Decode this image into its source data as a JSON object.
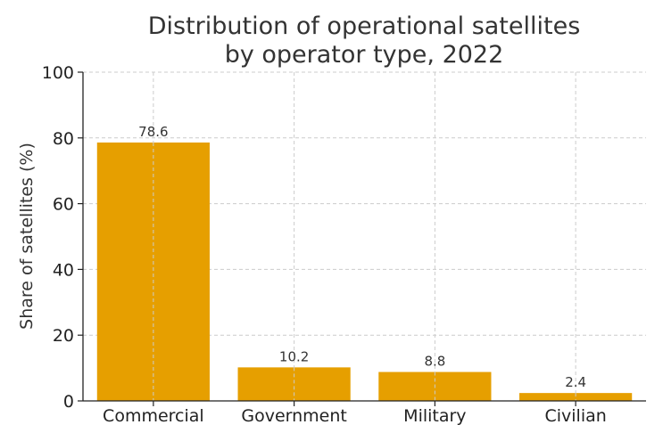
{
  "chart_data": {
    "type": "bar",
    "title_lines": [
      "Distribution of operational satellites",
      "by operator type, 2022"
    ],
    "xlabel": "",
    "ylabel": "Share of satellites (%)",
    "categories": [
      "Commercial",
      "Government",
      "Military",
      "Civilian"
    ],
    "values": [
      78.6,
      10.2,
      8.8,
      2.4
    ],
    "value_labels": [
      "78.6",
      "10.2",
      "8.8",
      "2.4"
    ],
    "ylim": [
      0,
      100
    ],
    "yticks": [
      0,
      20,
      40,
      60,
      80,
      100
    ],
    "grid": true,
    "legend": "none",
    "bar_color": "#E69F00"
  }
}
